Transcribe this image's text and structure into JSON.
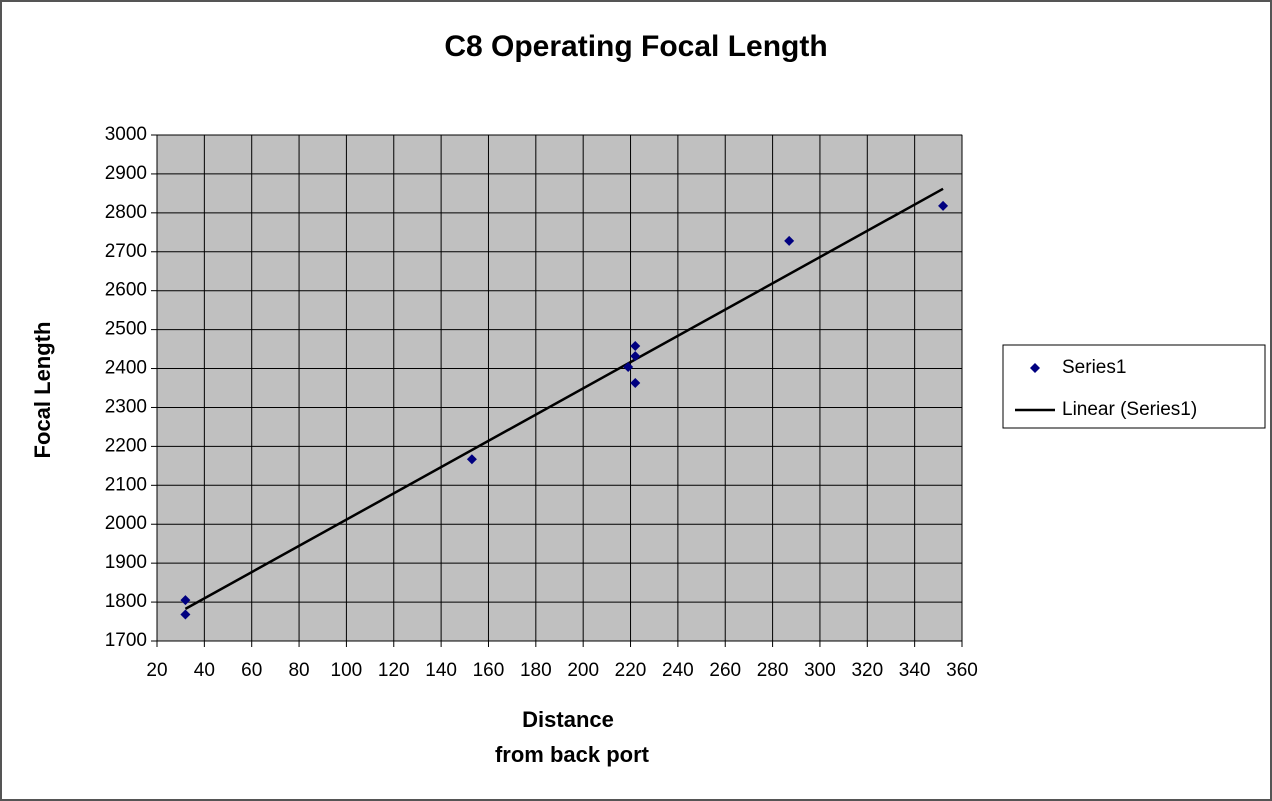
{
  "chart_data": {
    "type": "scatter",
    "title": "C8 Operating Focal Length",
    "xlabel": [
      "Distance",
      "from back port"
    ],
    "ylabel": "Focal Length",
    "series": [
      {
        "name": "Series1",
        "color": "#000080",
        "x": [
          32,
          32,
          153,
          219,
          222,
          222,
          222,
          287,
          352
        ],
        "values": [
          1805,
          1768,
          2167,
          2404,
          2458,
          2432,
          2363,
          2728,
          2818
        ]
      }
    ],
    "trendline": {
      "type": "linear",
      "name": "Linear (Series1)",
      "color": "#000000"
    },
    "xlim": [
      20,
      360
    ],
    "xticks": [
      20,
      40,
      60,
      80,
      100,
      120,
      140,
      160,
      180,
      200,
      220,
      240,
      260,
      280,
      300,
      320,
      340,
      360
    ],
    "ylim": [
      1700,
      3000
    ],
    "yticks": [
      1700,
      1800,
      1900,
      2000,
      2100,
      2200,
      2300,
      2400,
      2500,
      2600,
      2700,
      2800,
      2900,
      3000
    ],
    "grid": true,
    "plot_background": "#c0c0c0",
    "legend": "right"
  }
}
